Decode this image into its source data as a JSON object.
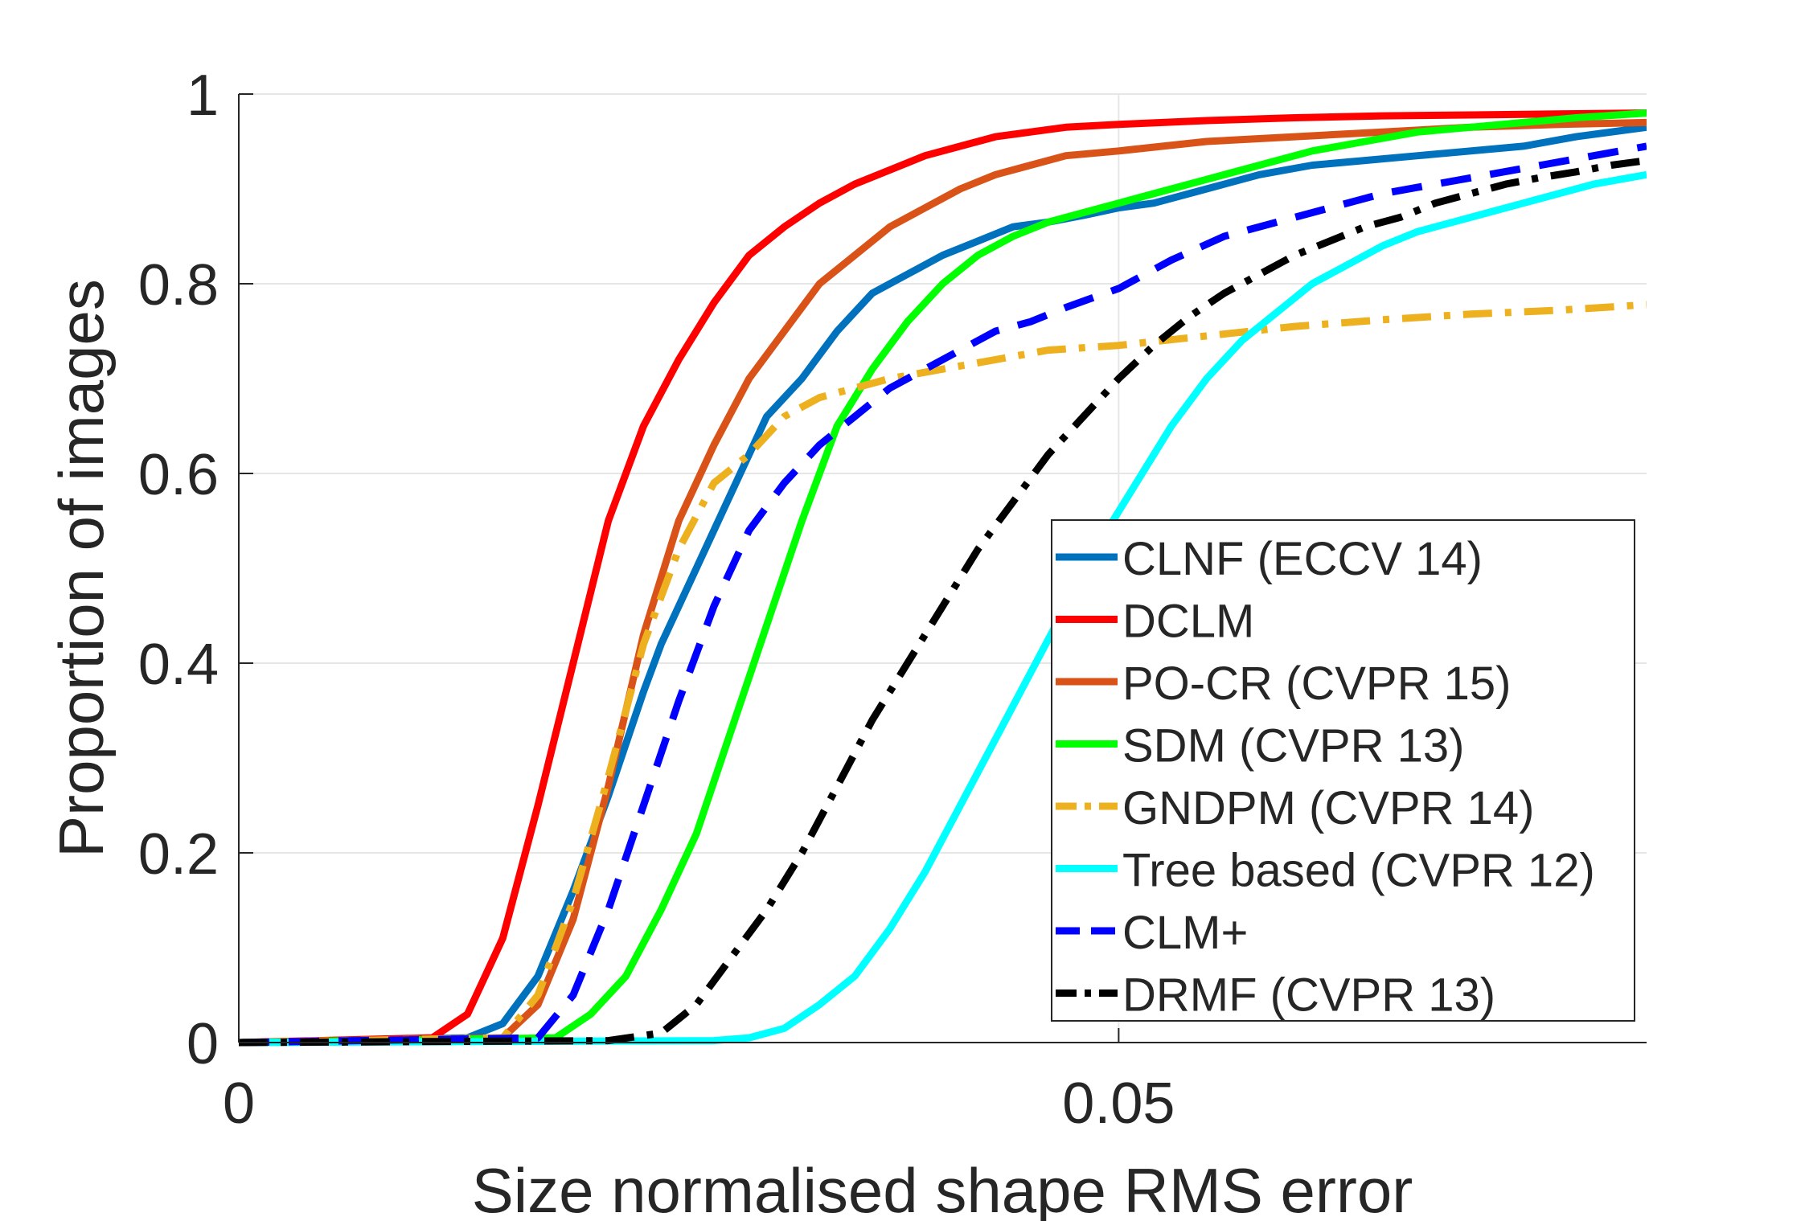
{
  "chart_data": {
    "type": "line",
    "title": "",
    "xlabel": "Size normalised shape RMS error",
    "ylabel": "Proportion of images",
    "xlim": [
      0,
      0.08
    ],
    "ylim": [
      0,
      1
    ],
    "xticks": [
      0,
      0.05
    ],
    "xtick_labels": [
      "0",
      "0.05"
    ],
    "yticks": [
      0,
      0.2,
      0.4,
      0.6,
      0.8,
      1
    ],
    "ytick_labels": [
      "0",
      "0.2",
      "0.4",
      "0.6",
      "0.8",
      "1"
    ],
    "grid": true,
    "legend_position": "bottom-right",
    "series": [
      {
        "name": "CLNF (ECCV 14)",
        "color": "#0072BD",
        "style": "solid",
        "x": [
          0,
          0.013,
          0.015,
          0.017,
          0.019,
          0.021,
          0.023,
          0.024,
          0.026,
          0.028,
          0.03,
          0.032,
          0.034,
          0.036,
          0.038,
          0.04,
          0.042,
          0.044,
          0.046,
          0.048,
          0.05,
          0.052,
          0.055,
          0.058,
          0.061,
          0.064,
          0.067,
          0.07,
          0.073,
          0.076,
          0.08
        ],
        "y": [
          0,
          0.005,
          0.02,
          0.07,
          0.16,
          0.26,
          0.37,
          0.42,
          0.5,
          0.58,
          0.66,
          0.7,
          0.75,
          0.79,
          0.81,
          0.83,
          0.845,
          0.86,
          0.865,
          0.872,
          0.88,
          0.885,
          0.9,
          0.915,
          0.925,
          0.93,
          0.935,
          0.94,
          0.945,
          0.955,
          0.965
        ]
      },
      {
        "name": "DCLM",
        "color": "#FF0000",
        "style": "solid",
        "x": [
          0,
          0.011,
          0.013,
          0.015,
          0.017,
          0.019,
          0.021,
          0.023,
          0.025,
          0.027,
          0.029,
          0.031,
          0.033,
          0.035,
          0.037,
          0.039,
          0.041,
          0.043,
          0.045,
          0.047,
          0.05,
          0.055,
          0.06,
          0.065,
          0.07,
          0.075,
          0.08
        ],
        "y": [
          0,
          0.005,
          0.03,
          0.11,
          0.25,
          0.4,
          0.55,
          0.65,
          0.72,
          0.78,
          0.83,
          0.86,
          0.885,
          0.905,
          0.92,
          0.935,
          0.945,
          0.955,
          0.96,
          0.965,
          0.968,
          0.972,
          0.975,
          0.977,
          0.978,
          0.979,
          0.98
        ]
      },
      {
        "name": "PO-CR (CVPR 15)",
        "color": "#D95319",
        "style": "solid",
        "x": [
          0,
          0.015,
          0.017,
          0.019,
          0.021,
          0.023,
          0.025,
          0.027,
          0.029,
          0.031,
          0.033,
          0.035,
          0.037,
          0.039,
          0.041,
          0.043,
          0.045,
          0.047,
          0.05,
          0.055,
          0.06,
          0.065,
          0.07,
          0.075,
          0.08
        ],
        "y": [
          0,
          0.005,
          0.04,
          0.13,
          0.27,
          0.43,
          0.55,
          0.63,
          0.7,
          0.75,
          0.8,
          0.83,
          0.86,
          0.88,
          0.9,
          0.915,
          0.925,
          0.935,
          0.94,
          0.95,
          0.955,
          0.96,
          0.965,
          0.968,
          0.97
        ]
      },
      {
        "name": "SDM (CVPR 13)",
        "color": "#00FF00",
        "style": "solid",
        "x": [
          0,
          0.018,
          0.02,
          0.022,
          0.024,
          0.026,
          0.028,
          0.03,
          0.032,
          0.034,
          0.036,
          0.038,
          0.04,
          0.042,
          0.044,
          0.046,
          0.048,
          0.05,
          0.052,
          0.055,
          0.058,
          0.061,
          0.064,
          0.067,
          0.07,
          0.073,
          0.076,
          0.08
        ],
        "y": [
          0,
          0.005,
          0.03,
          0.07,
          0.14,
          0.22,
          0.33,
          0.44,
          0.55,
          0.65,
          0.71,
          0.76,
          0.8,
          0.83,
          0.85,
          0.865,
          0.875,
          0.885,
          0.895,
          0.91,
          0.925,
          0.94,
          0.95,
          0.96,
          0.965,
          0.97,
          0.975,
          0.98
        ]
      },
      {
        "name": "GNDPM (CVPR 14)",
        "color": "#EDB120",
        "style": "dashdot",
        "x": [
          0,
          0.015,
          0.017,
          0.019,
          0.021,
          0.023,
          0.025,
          0.027,
          0.029,
          0.031,
          0.033,
          0.035,
          0.037,
          0.04,
          0.043,
          0.046,
          0.05,
          0.055,
          0.06,
          0.065,
          0.07,
          0.075,
          0.08
        ],
        "y": [
          0,
          0.005,
          0.05,
          0.15,
          0.28,
          0.42,
          0.52,
          0.59,
          0.62,
          0.66,
          0.68,
          0.69,
          0.7,
          0.71,
          0.72,
          0.73,
          0.735,
          0.745,
          0.755,
          0.762,
          0.768,
          0.772,
          0.778
        ]
      },
      {
        "name": "Tree based (CVPR 12)",
        "color": "#00FFFF",
        "style": "solid",
        "x": [
          0,
          0.027,
          0.029,
          0.031,
          0.033,
          0.035,
          0.037,
          0.039,
          0.041,
          0.043,
          0.045,
          0.047,
          0.049,
          0.051,
          0.053,
          0.055,
          0.057,
          0.059,
          0.061,
          0.063,
          0.065,
          0.067,
          0.069,
          0.071,
          0.073,
          0.075,
          0.077,
          0.08
        ],
        "y": [
          0,
          0.002,
          0.005,
          0.015,
          0.04,
          0.07,
          0.12,
          0.18,
          0.25,
          0.32,
          0.39,
          0.46,
          0.53,
          0.59,
          0.65,
          0.7,
          0.74,
          0.77,
          0.8,
          0.82,
          0.84,
          0.855,
          0.865,
          0.875,
          0.885,
          0.895,
          0.905,
          0.915
        ]
      },
      {
        "name": "CLM+",
        "color": "#0000FF",
        "style": "dashed",
        "x": [
          0,
          0.017,
          0.019,
          0.021,
          0.023,
          0.025,
          0.027,
          0.029,
          0.031,
          0.033,
          0.035,
          0.037,
          0.039,
          0.041,
          0.043,
          0.045,
          0.047,
          0.05,
          0.053,
          0.056,
          0.059,
          0.062,
          0.065,
          0.068,
          0.071,
          0.074,
          0.077,
          0.08
        ],
        "y": [
          0,
          0.005,
          0.05,
          0.14,
          0.25,
          0.36,
          0.46,
          0.54,
          0.59,
          0.63,
          0.66,
          0.69,
          0.71,
          0.73,
          0.75,
          0.76,
          0.775,
          0.795,
          0.825,
          0.85,
          0.865,
          0.88,
          0.895,
          0.905,
          0.915,
          0.925,
          0.935,
          0.945
        ]
      },
      {
        "name": "DRMF (CVPR 13)",
        "color": "#000000",
        "style": "dashdot",
        "x": [
          0,
          0.021,
          0.024,
          0.026,
          0.028,
          0.03,
          0.032,
          0.034,
          0.036,
          0.038,
          0.04,
          0.042,
          0.044,
          0.046,
          0.048,
          0.05,
          0.052,
          0.054,
          0.056,
          0.058,
          0.06,
          0.062,
          0.064,
          0.066,
          0.068,
          0.07,
          0.072,
          0.074,
          0.076,
          0.078,
          0.08
        ],
        "y": [
          0,
          0.002,
          0.01,
          0.04,
          0.09,
          0.14,
          0.2,
          0.27,
          0.34,
          0.4,
          0.46,
          0.52,
          0.57,
          0.62,
          0.66,
          0.7,
          0.735,
          0.765,
          0.79,
          0.81,
          0.83,
          0.845,
          0.86,
          0.87,
          0.885,
          0.895,
          0.905,
          0.912,
          0.918,
          0.925,
          0.93
        ]
      }
    ]
  }
}
